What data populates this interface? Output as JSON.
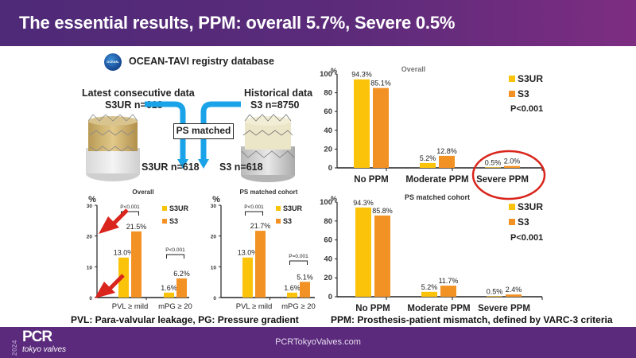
{
  "header": {
    "title": "The essential results, PPM: overall 5.7%, Severe 0.5%"
  },
  "registry": {
    "logo_text": "OCEAN-SHD",
    "title": "OCEAN-TAVI registry database",
    "latest_label": "Latest consecutive data",
    "latest_n": "S3UR n=618",
    "historical_label": "Historical data",
    "historical_n": "S3 n=8750",
    "ps_matched": "PS matched",
    "matched_left": "S3UR n=618",
    "matched_right": "S3 n=618",
    "arrow_color": "#1aa3e8"
  },
  "colors": {
    "S3UR": "#fcc30b",
    "S3": "#f39224",
    "highlight": "#d9251c"
  },
  "captions": {
    "left": "PVL: Para-valvular leakage, PG: Pressure gradient",
    "right": "PPM: Prosthesis-patient mismatch, defined by VARC-3 criteria"
  },
  "footer": {
    "url": "PCRTokyoValves.com",
    "logo_year": "2024",
    "logo_brand": "PCR",
    "logo_sub": "tokyo valves"
  },
  "chart_data": [
    {
      "id": "ppm-overall",
      "type": "bar",
      "title": "Overall",
      "ylabel": "%",
      "ylim": [
        0,
        100
      ],
      "yticks": [
        0,
        20,
        40,
        60,
        80,
        100
      ],
      "categories": [
        "No PPM",
        "Moderate PPM",
        "Severe PPM"
      ],
      "series": [
        {
          "name": "S3UR",
          "values": [
            94.3,
            5.2,
            0.5
          ],
          "labels": [
            "94.3%",
            "5.2%",
            "0.5%"
          ]
        },
        {
          "name": "S3",
          "values": [
            85.1,
            12.8,
            2.0
          ],
          "labels": [
            "85.1%",
            "12.8%",
            "2.0%"
          ]
        }
      ],
      "legend": "right",
      "pvalue": "P<0.001",
      "highlight": "Severe PPM"
    },
    {
      "id": "ppm-matched",
      "type": "bar",
      "title": "PS matched cohort",
      "ylabel": "%",
      "ylim": [
        0,
        100
      ],
      "yticks": [
        0,
        20,
        40,
        60,
        80,
        100
      ],
      "categories": [
        "No PPM",
        "Moderate PPM",
        "Severe PPM"
      ],
      "series": [
        {
          "name": "S3UR",
          "values": [
            94.3,
            5.2,
            0.5
          ],
          "labels": [
            "94.3%",
            "5.2%",
            "0.5%"
          ]
        },
        {
          "name": "S3",
          "values": [
            85.8,
            11.7,
            2.4
          ],
          "labels": [
            "85.8%",
            "11.7%",
            "2.4%"
          ]
        }
      ],
      "legend": "right",
      "pvalue": "P<0.001"
    },
    {
      "id": "pvl-overall",
      "type": "bar",
      "title": "Overall",
      "ylabel": "%",
      "ylim": [
        0,
        30
      ],
      "yticks": [
        0,
        10,
        20,
        30
      ],
      "categories": [
        "PVL ≥ mild",
        "mPG ≥ 20"
      ],
      "series": [
        {
          "name": "S3UR",
          "values": [
            13.0,
            1.6
          ],
          "labels": [
            "13.0%",
            "1.6%"
          ]
        },
        {
          "name": "S3",
          "values": [
            21.5,
            6.2
          ],
          "labels": [
            "21.5%",
            "6.2%"
          ]
        }
      ],
      "pvalues": [
        "P<0.001",
        "P<0.001"
      ],
      "legend": "top-right",
      "arrows": true
    },
    {
      "id": "pvl-matched",
      "type": "bar",
      "title": "PS matched cohort",
      "ylabel": "%",
      "ylim": [
        0,
        30
      ],
      "yticks": [
        0,
        10,
        20,
        30
      ],
      "categories": [
        "PVL ≥ mild",
        "mPG ≥ 20"
      ],
      "series": [
        {
          "name": "S3UR",
          "values": [
            13.0,
            1.6
          ],
          "labels": [
            "13.0%",
            "1.6%"
          ]
        },
        {
          "name": "S3",
          "values": [
            21.7,
            5.1
          ],
          "labels": [
            "21.7%",
            "5.1%"
          ]
        }
      ],
      "pvalues": [
        "P<0.001",
        "P=0.001"
      ],
      "legend": "top-right",
      "arrows": false
    }
  ]
}
